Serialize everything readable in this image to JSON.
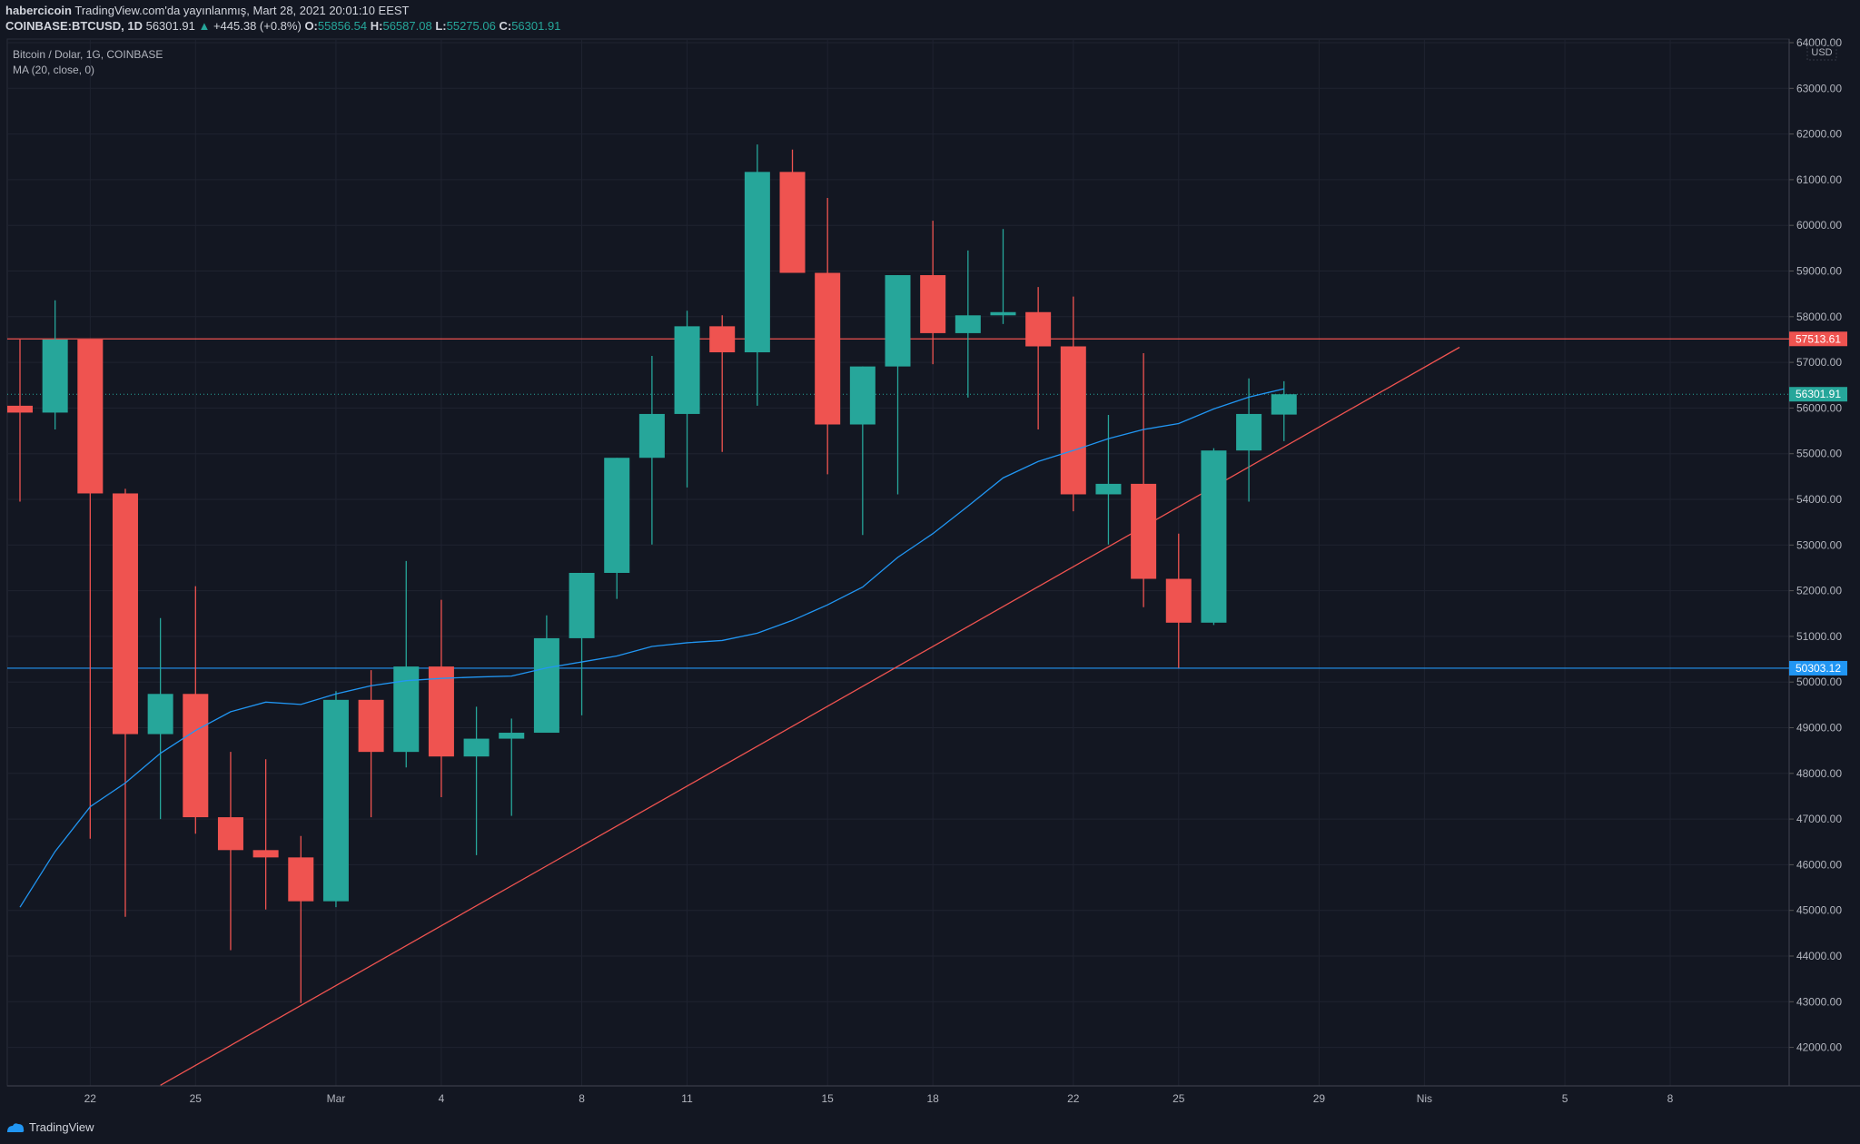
{
  "header": {
    "publisher": "habercicoin",
    "published_text": "TradingView.com'da yayınlanmış, Mart 28, 2021 20:01:10 EEST",
    "symbol": "COINBASE:BTCUSD, 1D",
    "last": "56301.91",
    "change": "+445.38 (+0.8%)",
    "o_label": "O:",
    "o": "55856.54",
    "h_label": "H:",
    "h": "56587.08",
    "l_label": "L:",
    "l": "55275.06",
    "c_label": "C:",
    "c": "56301.91"
  },
  "legend": {
    "title": "Bitcoin / Dolar, 1G, COINBASE",
    "indicator": "MA (20, close, 0)"
  },
  "footer": {
    "brand": "TradingView"
  },
  "colors": {
    "background": "#131722",
    "up": "#26a69a",
    "down": "#ef5350",
    "ma": "#2196f3",
    "support": "#2196f3",
    "resistance": "#ef5350",
    "trendline": "#ef5350"
  },
  "chart_data": {
    "type": "candlestick",
    "currency_label": "USD",
    "ylim": [
      41000,
      64000
    ],
    "y_ticks": [
      "42000.00",
      "43000.00",
      "44000.00",
      "45000.00",
      "46000.00",
      "47000.00",
      "48000.00",
      "49000.00",
      "50000.00",
      "51000.00",
      "52000.00",
      "53000.00",
      "54000.00",
      "55000.00",
      "56000.00",
      "57000.00",
      "58000.00",
      "59000.00",
      "60000.00",
      "61000.00",
      "62000.00",
      "63000.00",
      "64000.00"
    ],
    "x_ticks": [
      {
        "date": "2021-02-22",
        "label": "22"
      },
      {
        "date": "2021-02-25",
        "label": "25"
      },
      {
        "date": "2021-03-01",
        "label": "Mar"
      },
      {
        "date": "2021-03-04",
        "label": "4"
      },
      {
        "date": "2021-03-08",
        "label": "8"
      },
      {
        "date": "2021-03-11",
        "label": "11"
      },
      {
        "date": "2021-03-15",
        "label": "15"
      },
      {
        "date": "2021-03-18",
        "label": "18"
      },
      {
        "date": "2021-03-22",
        "label": "22"
      },
      {
        "date": "2021-03-25",
        "label": "25"
      },
      {
        "date": "2021-03-29",
        "label": "29"
      },
      {
        "date": "2021-04-01",
        "label": "Nis"
      },
      {
        "date": "2021-04-05",
        "label": "5"
      },
      {
        "date": "2021-04-08",
        "label": "8"
      }
    ],
    "grid": true,
    "candles": [
      {
        "date": "2021-02-20",
        "o": 56050,
        "h": 57500,
        "l": 53950,
        "c": 55900
      },
      {
        "date": "2021-02-21",
        "o": 55900,
        "h": 58360,
        "l": 55530,
        "c": 57500
      },
      {
        "date": "2021-02-22",
        "o": 57500,
        "h": 57500,
        "l": 46570,
        "c": 54130
      },
      {
        "date": "2021-02-23",
        "o": 54130,
        "h": 54230,
        "l": 44860,
        "c": 48860
      },
      {
        "date": "2021-02-24",
        "o": 48860,
        "h": 51400,
        "l": 47000,
        "c": 49740
      },
      {
        "date": "2021-02-25",
        "o": 49740,
        "h": 52100,
        "l": 46680,
        "c": 47040
      },
      {
        "date": "2021-02-26",
        "o": 47040,
        "h": 48470,
        "l": 44130,
        "c": 46320
      },
      {
        "date": "2021-02-27",
        "o": 46320,
        "h": 48310,
        "l": 45020,
        "c": 46160
      },
      {
        "date": "2021-02-28",
        "o": 46160,
        "h": 46630,
        "l": 42970,
        "c": 45200
      },
      {
        "date": "2021-03-01",
        "o": 45200,
        "h": 49800,
        "l": 45070,
        "c": 49610
      },
      {
        "date": "2021-03-02",
        "o": 49610,
        "h": 50260,
        "l": 47040,
        "c": 48470
      },
      {
        "date": "2021-03-03",
        "o": 48470,
        "h": 52650,
        "l": 48130,
        "c": 50340
      },
      {
        "date": "2021-03-04",
        "o": 50340,
        "h": 51800,
        "l": 47480,
        "c": 48370
      },
      {
        "date": "2021-03-05",
        "o": 48370,
        "h": 49460,
        "l": 46210,
        "c": 48760
      },
      {
        "date": "2021-03-06",
        "o": 48760,
        "h": 49200,
        "l": 47070,
        "c": 48890
      },
      {
        "date": "2021-03-07",
        "o": 48890,
        "h": 51460,
        "l": 48890,
        "c": 50960
      },
      {
        "date": "2021-03-08",
        "o": 50960,
        "h": 52390,
        "l": 49270,
        "c": 52390
      },
      {
        "date": "2021-03-09",
        "o": 52390,
        "h": 54910,
        "l": 51820,
        "c": 54910
      },
      {
        "date": "2021-03-10",
        "o": 54910,
        "h": 57140,
        "l": 53010,
        "c": 55870
      },
      {
        "date": "2021-03-11",
        "o": 55870,
        "h": 58130,
        "l": 54260,
        "c": 57790
      },
      {
        "date": "2021-03-12",
        "o": 57790,
        "h": 58030,
        "l": 55040,
        "c": 57220
      },
      {
        "date": "2021-03-13",
        "o": 57220,
        "h": 61770,
        "l": 56050,
        "c": 61170
      },
      {
        "date": "2021-03-14",
        "o": 61170,
        "h": 61660,
        "l": 58960,
        "c": 58960
      },
      {
        "date": "2021-03-15",
        "o": 58960,
        "h": 60600,
        "l": 54550,
        "c": 55640
      },
      {
        "date": "2021-03-16",
        "o": 55640,
        "h": 56910,
        "l": 53220,
        "c": 56910
      },
      {
        "date": "2021-03-17",
        "o": 56910,
        "h": 58910,
        "l": 54110,
        "c": 58910
      },
      {
        "date": "2021-03-18",
        "o": 58910,
        "h": 60100,
        "l": 56960,
        "c": 57640
      },
      {
        "date": "2021-03-19",
        "o": 57640,
        "h": 59450,
        "l": 56230,
        "c": 58030
      },
      {
        "date": "2021-03-20",
        "o": 58030,
        "h": 59920,
        "l": 57840,
        "c": 58100
      },
      {
        "date": "2021-03-21",
        "o": 58100,
        "h": 58650,
        "l": 55530,
        "c": 57350
      },
      {
        "date": "2021-03-22",
        "o": 57350,
        "h": 58440,
        "l": 53740,
        "c": 54110
      },
      {
        "date": "2021-03-23",
        "o": 54110,
        "h": 55850,
        "l": 53010,
        "c": 54340
      },
      {
        "date": "2021-03-24",
        "o": 54340,
        "h": 57200,
        "l": 51640,
        "c": 52260
      },
      {
        "date": "2021-03-25",
        "o": 52260,
        "h": 53250,
        "l": 50310,
        "c": 51300
      },
      {
        "date": "2021-03-26",
        "o": 51300,
        "h": 55120,
        "l": 51250,
        "c": 55070
      },
      {
        "date": "2021-03-27",
        "o": 55070,
        "h": 56650,
        "l": 53950,
        "c": 55870
      },
      {
        "date": "2021-03-28",
        "o": 55856.54,
        "h": 56587.08,
        "l": 55275.06,
        "c": 56301.91
      }
    ],
    "ma20": [
      45070,
      46290,
      47270,
      47790,
      48440,
      48940,
      49350,
      49560,
      49510,
      49740,
      49920,
      50030,
      50080,
      50110,
      50130,
      50310,
      50440,
      50570,
      50780,
      50860,
      50910,
      51070,
      51350,
      51690,
      52080,
      52730,
      53250,
      53850,
      54470,
      54830,
      55070,
      55330,
      55530,
      55660,
      55980,
      56240,
      56420
    ],
    "horizontal_lines": [
      {
        "price": 57513.61,
        "label": "57513.61",
        "color": "#ef5350"
      },
      {
        "price": 50303.12,
        "label": "50303.12",
        "color": "#2196f3"
      }
    ],
    "last_price": {
      "price": 56301.91,
      "label": "56301.91",
      "color": "#26a69a"
    },
    "trendline": {
      "start": {
        "date": "2021-02-24",
        "price": 41170
      },
      "end": {
        "date": "2021-04-02",
        "price": 57330
      },
      "color": "#ef5350"
    }
  }
}
